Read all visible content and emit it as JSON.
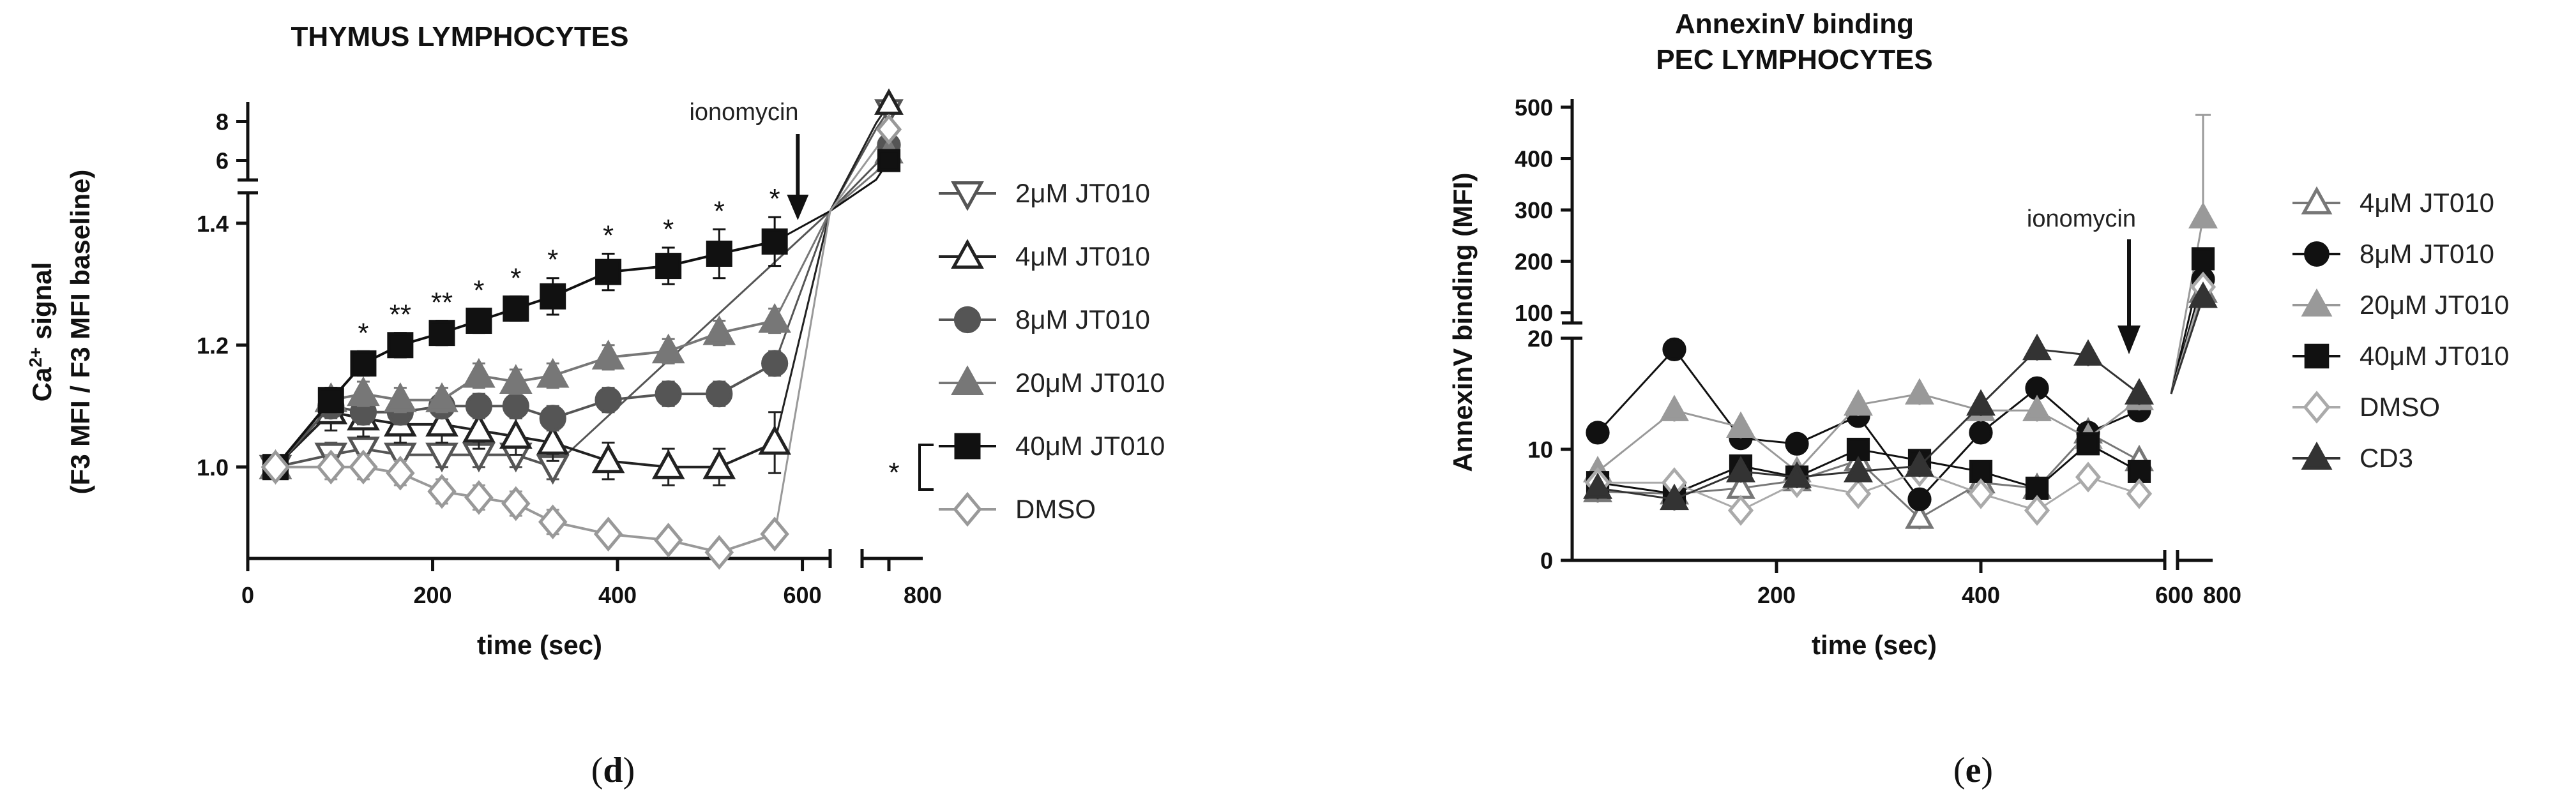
{
  "chart_data": [
    {
      "type": "line",
      "title": "THYMUS LYMPHOCYTES",
      "xlabel": "time (sec)",
      "ylabel_line1": "Ca",
      "ylabel_sup": "2+",
      "ylabel_line1_rest": " signal",
      "ylabel_line2": "(F3 MFI / F3 MFI baseline)",
      "xlim": [
        0,
        630
      ],
      "x_ticks": [
        "0",
        "200",
        "400",
        "600"
      ],
      "x_tick_values": [
        0,
        200,
        400,
        600
      ],
      "x_break_tick": "800",
      "x_break_tick_value": 800,
      "ylim_lower": [
        0.85,
        1.45
      ],
      "y_ticks_lower": [
        "1.0",
        "1.2",
        "1.4"
      ],
      "y_tick_values_lower": [
        1.0,
        1.2,
        1.4
      ],
      "ylim_upper": [
        5,
        9
      ],
      "y_ticks_upper": [
        "6",
        "8"
      ],
      "y_tick_values_upper": [
        6,
        8
      ],
      "annotation": "ionomycin",
      "annotation_x": 595,
      "significance_marks": [
        {
          "x": 125,
          "label": "*"
        },
        {
          "x": 165,
          "label": "**"
        },
        {
          "x": 210,
          "label": "**"
        },
        {
          "x": 250,
          "label": "*"
        },
        {
          "x": 290,
          "label": "*"
        },
        {
          "x": 330,
          "label": "*"
        },
        {
          "x": 390,
          "label": "*"
        },
        {
          "x": 455,
          "label": "*"
        },
        {
          "x": 510,
          "label": "*"
        },
        {
          "x": 570,
          "label": "*"
        }
      ],
      "legend_bracket_label": "*",
      "series": [
        {
          "name": "2μM JT010",
          "marker": "triangle-down-open",
          "color": "#555555",
          "x": [
            30,
            90,
            125,
            165,
            210,
            250,
            290,
            330
          ],
          "y": [
            1.0,
            1.02,
            1.03,
            1.02,
            1.02,
            1.02,
            1.02,
            1.0
          ],
          "err": [
            0.01,
            0.02,
            0.02,
            0.02,
            0.02,
            0.02,
            0.02,
            0.02
          ],
          "post_y": 8.6
        },
        {
          "name": "4μM JT010",
          "marker": "triangle-up-open",
          "color": "#222222",
          "x": [
            30,
            90,
            125,
            165,
            210,
            250,
            290,
            330,
            390,
            455,
            510,
            570
          ],
          "y": [
            1.0,
            1.09,
            1.08,
            1.07,
            1.07,
            1.06,
            1.05,
            1.04,
            1.01,
            1.0,
            1.0,
            1.04
          ],
          "err": [
            0.01,
            0.03,
            0.03,
            0.03,
            0.03,
            0.03,
            0.03,
            0.03,
            0.03,
            0.03,
            0.03,
            0.05
          ],
          "post_y": 8.9
        },
        {
          "name": "8μM JT010",
          "marker": "circle-filled",
          "color": "#555555",
          "x": [
            30,
            90,
            125,
            165,
            210,
            250,
            290,
            330,
            390,
            455,
            510,
            570
          ],
          "y": [
            1.0,
            1.1,
            1.09,
            1.09,
            1.1,
            1.1,
            1.1,
            1.08,
            1.11,
            1.12,
            1.12,
            1.17
          ],
          "err": [
            0.01,
            0.02,
            0.02,
            0.02,
            0.02,
            0.02,
            0.02,
            0.02,
            0.02,
            0.02,
            0.02,
            0.02
          ],
          "post_y": 6.8
        },
        {
          "name": "20μM JT010",
          "marker": "triangle-up-filled",
          "color": "#777777",
          "x": [
            30,
            90,
            125,
            165,
            210,
            250,
            290,
            330,
            390,
            455,
            510,
            570
          ],
          "y": [
            1.0,
            1.11,
            1.12,
            1.11,
            1.11,
            1.15,
            1.14,
            1.15,
            1.18,
            1.19,
            1.22,
            1.24
          ],
          "err": [
            0.01,
            0.02,
            0.02,
            0.02,
            0.02,
            0.02,
            0.02,
            0.02,
            0.02,
            0.02,
            0.02,
            0.02
          ],
          "post_y": 6.4
        },
        {
          "name": "40μM JT010",
          "marker": "square-filled",
          "color": "#111111",
          "x": [
            30,
            90,
            125,
            165,
            210,
            250,
            290,
            330,
            390,
            455,
            510,
            570
          ],
          "y": [
            1.0,
            1.11,
            1.17,
            1.2,
            1.22,
            1.24,
            1.26,
            1.28,
            1.32,
            1.33,
            1.35,
            1.37
          ],
          "err": [
            0.01,
            0.02,
            0.02,
            0.02,
            0.02,
            0.02,
            0.02,
            0.03,
            0.03,
            0.03,
            0.04,
            0.04
          ],
          "post_y": 6.0
        },
        {
          "name": "DMSO",
          "marker": "diamond-open",
          "color": "#999999",
          "x": [
            30,
            90,
            125,
            165,
            210,
            250,
            290,
            330,
            390,
            455,
            510,
            570
          ],
          "y": [
            1.0,
            1.0,
            1.0,
            0.99,
            0.96,
            0.95,
            0.94,
            0.91,
            0.89,
            0.88,
            0.86,
            0.89
          ],
          "err": [
            0.01,
            0.02,
            0.02,
            0.02,
            0.02,
            0.02,
            0.02,
            0.02,
            0.01,
            0.01,
            0.01,
            0.01
          ],
          "post_y": 7.6
        }
      ]
    },
    {
      "type": "line",
      "title_line1": "AnnexinV binding",
      "title_line2": "PEC LYMPHOCYTES",
      "xlabel": "time (sec)",
      "ylabel": "AnnexinV binding (MFI)",
      "xlim": [
        0,
        580
      ],
      "x_ticks": [
        "200",
        "400"
      ],
      "x_tick_values": [
        200,
        400
      ],
      "x_break_ticks": [
        "600",
        "800"
      ],
      "x_break_tick_values": [
        600,
        800
      ],
      "ylim_lower": [
        0,
        20
      ],
      "y_ticks_lower": [
        "0",
        "10",
        "20"
      ],
      "y_tick_values_lower": [
        0,
        10,
        20
      ],
      "ylim_upper": [
        80,
        500
      ],
      "y_ticks_upper": [
        "100",
        "200",
        "300",
        "400",
        "500"
      ],
      "y_tick_values_upper": [
        100,
        200,
        300,
        400,
        500
      ],
      "annotation": "ionomycin",
      "annotation_x": 545,
      "series": [
        {
          "name": "4μM JT010",
          "marker": "triangle-up-open",
          "color": "#777777",
          "x": [
            25,
            100,
            165,
            220,
            280,
            340,
            400,
            455,
            505,
            555
          ],
          "y": [
            6.2,
            6.0,
            6.5,
            7.2,
            9.0,
            3.8,
            7.0,
            6.5,
            11.5,
            9.0
          ],
          "post_y": 140
        },
        {
          "name": "8μM JT010",
          "marker": "circle-filled",
          "color": "#111111",
          "x": [
            25,
            100,
            165,
            220,
            280,
            340,
            400,
            455,
            505,
            555
          ],
          "y": [
            11.5,
            19.0,
            11.0,
            10.5,
            13.0,
            5.5,
            11.5,
            15.5,
            11.5,
            13.5
          ],
          "post_y": 165
        },
        {
          "name": "20μM JT010",
          "marker": "triangle-up-filled",
          "color": "#999999",
          "x": [
            25,
            100,
            165,
            220,
            280,
            340,
            400,
            455,
            505,
            555
          ],
          "y": [
            8.0,
            13.5,
            12.0,
            8.0,
            14.0,
            15.0,
            13.5,
            13.5,
            11.0,
            14.5
          ],
          "post_y": 285
        },
        {
          "name": "40μM JT010",
          "marker": "square-filled",
          "color": "#111111",
          "x": [
            25,
            100,
            165,
            220,
            280,
            340,
            400,
            455,
            505,
            555
          ],
          "y": [
            7.0,
            6.0,
            8.5,
            7.5,
            10.0,
            9.0,
            8.0,
            6.5,
            10.5,
            8.0
          ],
          "post_y": 205
        },
        {
          "name": "DMSO",
          "marker": "diamond-open",
          "color": "#aaaaaa",
          "x": [
            25,
            100,
            165,
            220,
            280,
            340,
            400,
            455,
            505,
            555
          ],
          "y": [
            7.0,
            7.0,
            4.5,
            7.0,
            6.0,
            8.0,
            6.0,
            4.5,
            7.5,
            6.0
          ],
          "post_y": 150
        },
        {
          "name": "CD3",
          "marker": "triangle-up-filled",
          "color": "#333333",
          "x": [
            25,
            100,
            165,
            220,
            280,
            340,
            400,
            455,
            505,
            555
          ],
          "y": [
            6.5,
            5.5,
            8.0,
            7.5,
            8.0,
            8.5,
            14.0,
            19.0,
            18.5,
            15.0
          ],
          "post_y": 130
        }
      ]
    }
  ],
  "captions": {
    "d_open": "(",
    "d_letter": "d",
    "d_close": ")",
    "e_open": "(",
    "e_letter": "e",
    "e_close": ")"
  }
}
